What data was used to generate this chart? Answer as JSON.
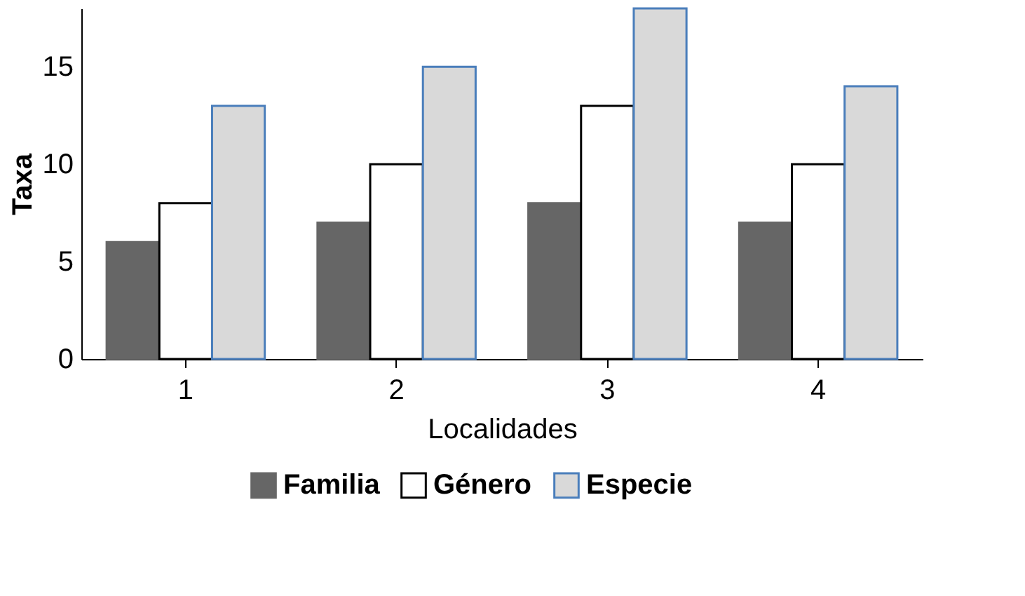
{
  "chart_data": {
    "type": "bar",
    "xlabel": "Localidades",
    "ylabel": "Taxa",
    "categories": [
      "1",
      "2",
      "3",
      "4"
    ],
    "series": [
      {
        "name": "Familia",
        "color": "#666666",
        "values": [
          6,
          7,
          8,
          7
        ]
      },
      {
        "name": "Género",
        "color": "#ffffff",
        "values": [
          8,
          10,
          13,
          10
        ]
      },
      {
        "name": "Especie",
        "color": "#d9d9d9",
        "values": [
          13,
          15,
          18,
          14
        ]
      }
    ],
    "ylim": [
      0,
      18
    ],
    "yticks": [
      0,
      5,
      10,
      15
    ],
    "grid": false,
    "legend": "bottom"
  }
}
